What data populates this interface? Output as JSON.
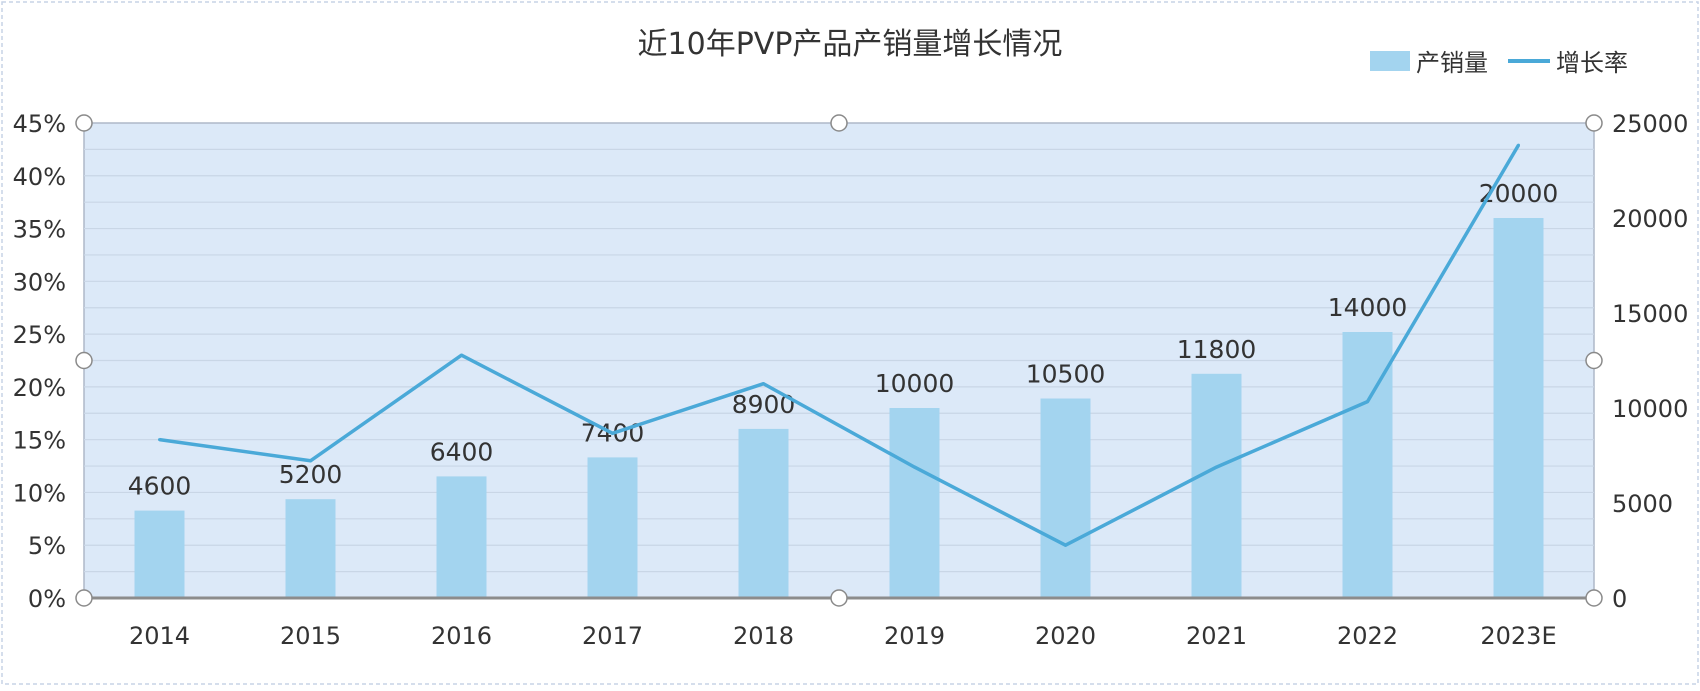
{
  "chart_data": {
    "type": "bar+line",
    "title": "近10年PVP产品产销量增长情况",
    "categories": [
      "2014",
      "2015",
      "2016",
      "2017",
      "2018",
      "2019",
      "2020",
      "2021",
      "2022",
      "2023E"
    ],
    "series": [
      {
        "name": "产销量",
        "type": "bar",
        "axis": "right",
        "color": "#a3d4ef",
        "values": [
          4600,
          5200,
          6400,
          7400,
          8900,
          10000,
          10500,
          11800,
          14000,
          20000
        ],
        "data_labels": [
          "4600",
          "5200",
          "6400",
          "7400",
          "8900",
          "10000",
          "10500",
          "11800",
          "14000",
          "20000"
        ]
      },
      {
        "name": "增长率",
        "type": "line",
        "axis": "left",
        "color": "#4aa9d8",
        "values": [
          15.0,
          13.0,
          23.0,
          15.6,
          20.3,
          12.4,
          5.0,
          12.4,
          18.6,
          42.9
        ]
      }
    ],
    "y_left": {
      "min": 0,
      "max": 45,
      "step": 5,
      "tick_labels": [
        "0%",
        "5%",
        "10%",
        "15%",
        "20%",
        "25%",
        "30%",
        "35%",
        "40%",
        "45%"
      ]
    },
    "y_right": {
      "min": 0,
      "max": 25000,
      "step": 5000,
      "tick_labels": [
        "0",
        "5000",
        "10000",
        "15000",
        "20000",
        "25000"
      ]
    },
    "grid": true,
    "legend_position": "top-right",
    "plot_background": "#dce9f8",
    "text_color": "#333333"
  }
}
